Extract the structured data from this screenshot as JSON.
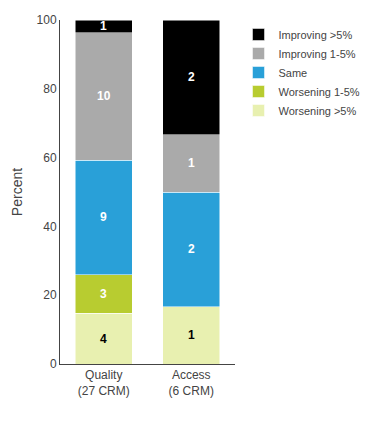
{
  "chart_data": {
    "type": "bar",
    "stacked": true,
    "categories": [
      "Quality\n(27 CRM)",
      "Access\n(6 CRM)"
    ],
    "series": [
      {
        "name": "Worsening >5%",
        "color": "#e8f0b0",
        "values": [
          14.814814814814815,
          16.666666666666664
        ],
        "counts": [
          4,
          1
        ]
      },
      {
        "name": "Worsening 1-5%",
        "color": "#b8cc30",
        "values": [
          11.11111111111111,
          0
        ],
        "counts": [
          3,
          0
        ]
      },
      {
        "name": "Same",
        "color": "#29a0d8",
        "values": [
          33.33333333333333,
          33.33333333333333
        ],
        "counts": [
          9,
          2
        ]
      },
      {
        "name": "Improving 1-5%",
        "color": "#aaaaaa",
        "values": [
          37.03703703703704,
          16.666666666666664
        ],
        "counts": [
          10,
          1
        ]
      },
      {
        "name": "Improving >5%",
        "color": "#000000",
        "values": [
          3.7037037037037037,
          33.33333333333333
        ],
        "counts": [
          1,
          2
        ]
      }
    ],
    "ylabel": "Percent",
    "ylim": [
      0,
      100
    ],
    "yticks": [
      0,
      20,
      40,
      60,
      80,
      100
    ],
    "grid": false,
    "legend": "right"
  }
}
